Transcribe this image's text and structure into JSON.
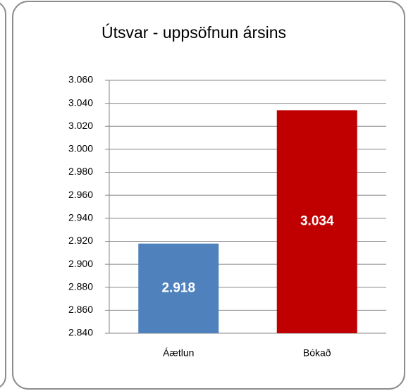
{
  "chart_data": {
    "type": "bar",
    "title": "Útsvar - uppsöfnun ársins",
    "categories": [
      "Áætlun",
      "Bókað"
    ],
    "values": [
      2918,
      3034
    ],
    "value_labels": [
      "2.918",
      "3.034"
    ],
    "colors": [
      "#4f81bd",
      "#c00000"
    ],
    "ylim": [
      2840,
      3060
    ],
    "yticks": [
      {
        "value": 2840,
        "label": "2.840"
      },
      {
        "value": 2860,
        "label": "2.860"
      },
      {
        "value": 2880,
        "label": "2.880"
      },
      {
        "value": 2900,
        "label": "2.900"
      },
      {
        "value": 2920,
        "label": "2.920"
      },
      {
        "value": 2940,
        "label": "2.940"
      },
      {
        "value": 2960,
        "label": "2.960"
      },
      {
        "value": 2980,
        "label": "2.980"
      },
      {
        "value": 3000,
        "label": "3.000"
      },
      {
        "value": 3020,
        "label": "3.020"
      },
      {
        "value": 3040,
        "label": "3.040"
      },
      {
        "value": 3060,
        "label": "3.060"
      }
    ],
    "grid": true
  }
}
